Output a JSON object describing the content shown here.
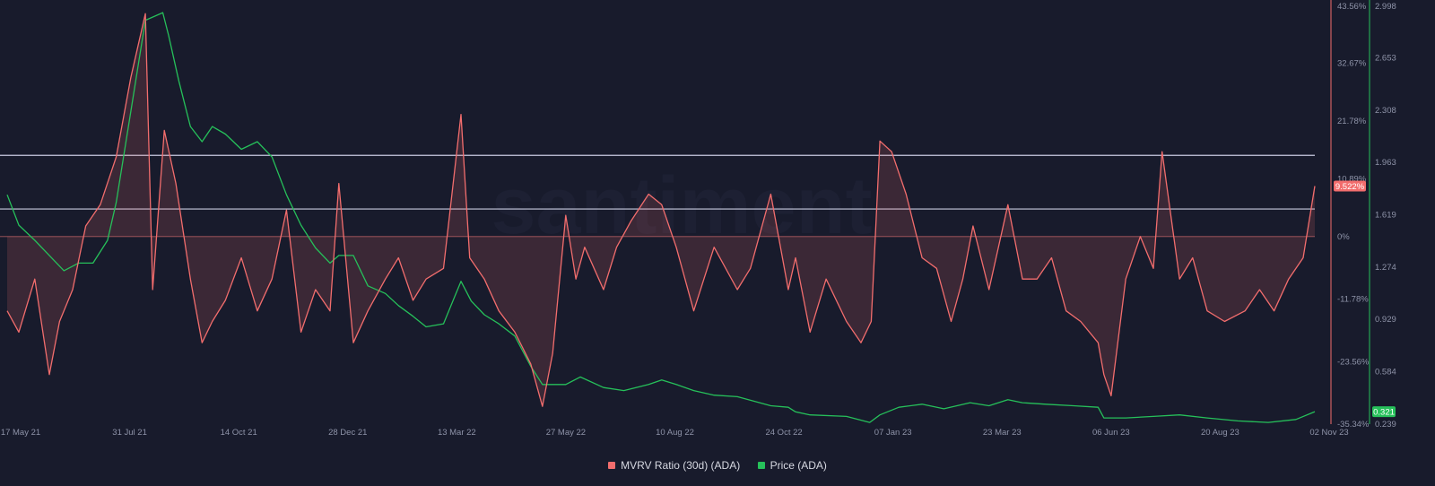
{
  "chart_data": {
    "type": "line",
    "watermark": "santiment",
    "x_ticks": [
      "17 May 21",
      "31 Jul 21",
      "14 Oct 21",
      "28 Dec 21",
      "13 Mar 22",
      "27 May 22",
      "10 Aug 22",
      "24 Oct 22",
      "07 Jan 23",
      "23 Mar 23",
      "06 Jun 23",
      "20 Aug 23",
      "02 Nov 23"
    ],
    "y_left": {
      "ticks": [
        "43.56%",
        "32.67%",
        "21.78%",
        "10.89%",
        "0%",
        "-11.78%",
        "-23.56%",
        "-35.34%"
      ],
      "tick_values": [
        43.56,
        32.67,
        21.78,
        10.89,
        0,
        -11.78,
        -23.56,
        -35.34
      ],
      "range": [
        -35.34,
        43.56
      ],
      "current_label": "9.522%",
      "current_value": 9.522
    },
    "y_right": {
      "ticks": [
        "2.998",
        "2.653",
        "2.308",
        "1.963",
        "1.619",
        "1.274",
        "0.929",
        "0.584",
        "0.239"
      ],
      "tick_values": [
        2.998,
        2.653,
        2.308,
        1.963,
        1.619,
        1.274,
        0.929,
        0.584,
        0.239
      ],
      "range": [
        0.239,
        2.998
      ],
      "current_label": "0.321",
      "current_value": 0.321
    },
    "reference_lines_mvrv": [
      15.3,
      5.2
    ],
    "series": [
      {
        "name": "MVRV Ratio (30d) (ADA)",
        "color": "#f26d6d",
        "axis": "left",
        "x": [
          "2021-05-17",
          "2021-05-25",
          "2021-06-05",
          "2021-06-15",
          "2021-06-22",
          "2021-07-01",
          "2021-07-10",
          "2021-07-20",
          "2021-07-31",
          "2021-08-10",
          "2021-08-20",
          "2021-08-25",
          "2021-09-02",
          "2021-09-10",
          "2021-09-20",
          "2021-09-28",
          "2021-10-05",
          "2021-10-14",
          "2021-10-25",
          "2021-11-05",
          "2021-11-15",
          "2021-11-25",
          "2021-12-05",
          "2021-12-15",
          "2021-12-25",
          "2021-12-31",
          "2022-01-10",
          "2022-01-20",
          "2022-02-01",
          "2022-02-10",
          "2022-02-20",
          "2022-03-01",
          "2022-03-13",
          "2022-03-25",
          "2022-03-31",
          "2022-04-10",
          "2022-04-20",
          "2022-05-01",
          "2022-05-12",
          "2022-05-20",
          "2022-05-27",
          "2022-06-05",
          "2022-06-12",
          "2022-06-18",
          "2022-07-01",
          "2022-07-10",
          "2022-07-20",
          "2022-08-01",
          "2022-08-10",
          "2022-08-20",
          "2022-09-01",
          "2022-09-15",
          "2022-10-01",
          "2022-10-10",
          "2022-10-24",
          "2022-11-05",
          "2022-11-10",
          "2022-11-20",
          "2022-12-01",
          "2022-12-15",
          "2022-12-25",
          "2023-01-01",
          "2023-01-07",
          "2023-01-15",
          "2023-01-25",
          "2023-02-05",
          "2023-02-15",
          "2023-02-25",
          "2023-03-05",
          "2023-03-12",
          "2023-03-23",
          "2023-04-05",
          "2023-04-15",
          "2023-04-25",
          "2023-05-05",
          "2023-05-15",
          "2023-05-25",
          "2023-06-06",
          "2023-06-10",
          "2023-06-15",
          "2023-06-25",
          "2023-07-05",
          "2023-07-14",
          "2023-07-20",
          "2023-08-01",
          "2023-08-10",
          "2023-08-20",
          "2023-09-01",
          "2023-09-15",
          "2023-09-25",
          "2023-10-05",
          "2023-10-15",
          "2023-10-25",
          "2023-11-02"
        ],
        "values": [
          -14,
          -18,
          -8,
          -26,
          -16,
          -10,
          2,
          6,
          15,
          30,
          42,
          -10,
          20,
          10,
          -8,
          -20,
          -16,
          -12,
          -4,
          -14,
          -8,
          5,
          -18,
          -10,
          -14,
          10,
          -20,
          -14,
          -8,
          -4,
          -12,
          -8,
          -6,
          23,
          -4,
          -8,
          -14,
          -18,
          -24,
          -32,
          -22,
          4,
          -8,
          -2,
          -10,
          -2,
          3,
          8,
          6,
          -2,
          -14,
          -2,
          -10,
          -6,
          8,
          -10,
          -4,
          -18,
          -8,
          -16,
          -20,
          -16,
          18,
          16,
          8,
          -4,
          -6,
          -16,
          -8,
          2,
          -10,
          6,
          -8,
          -8,
          -4,
          -14,
          -16,
          -20,
          -26,
          -30,
          -8,
          0,
          -6,
          16,
          -8,
          -4,
          -14,
          -16,
          -14,
          -10,
          -14,
          -8,
          -4,
          9.522
        ]
      },
      {
        "name": "Price (ADA)",
        "color": "#26c05a",
        "axis": "right",
        "x": [
          "2021-05-17",
          "2021-05-25",
          "2021-06-05",
          "2021-06-15",
          "2021-06-25",
          "2021-07-05",
          "2021-07-15",
          "2021-07-25",
          "2021-07-31",
          "2021-08-10",
          "2021-08-20",
          "2021-09-01",
          "2021-09-05",
          "2021-09-12",
          "2021-09-20",
          "2021-09-28",
          "2021-10-05",
          "2021-10-14",
          "2021-10-25",
          "2021-11-05",
          "2021-11-15",
          "2021-11-25",
          "2021-12-05",
          "2021-12-15",
          "2021-12-25",
          "2021-12-31",
          "2022-01-10",
          "2022-01-20",
          "2022-02-01",
          "2022-02-10",
          "2022-02-20",
          "2022-03-01",
          "2022-03-13",
          "2022-03-25",
          "2022-04-01",
          "2022-04-10",
          "2022-04-20",
          "2022-05-01",
          "2022-05-12",
          "2022-05-20",
          "2022-05-27",
          "2022-06-05",
          "2022-06-15",
          "2022-07-01",
          "2022-07-15",
          "2022-08-01",
          "2022-08-10",
          "2022-08-20",
          "2022-09-01",
          "2022-09-15",
          "2022-10-01",
          "2022-10-24",
          "2022-11-05",
          "2022-11-10",
          "2022-11-20",
          "2022-12-15",
          "2022-12-31",
          "2023-01-07",
          "2023-01-20",
          "2023-02-05",
          "2023-02-20",
          "2023-03-10",
          "2023-03-23",
          "2023-04-05",
          "2023-04-15",
          "2023-05-01",
          "2023-05-20",
          "2023-06-06",
          "2023-06-10",
          "2023-06-25",
          "2023-07-14",
          "2023-08-01",
          "2023-08-20",
          "2023-09-10",
          "2023-10-01",
          "2023-10-20",
          "2023-11-02"
        ],
        "values": [
          1.75,
          1.55,
          1.45,
          1.35,
          1.25,
          1.3,
          1.3,
          1.45,
          1.7,
          2.3,
          2.9,
          2.95,
          2.8,
          2.5,
          2.2,
          2.1,
          2.2,
          2.15,
          2.05,
          2.1,
          2.0,
          1.75,
          1.55,
          1.4,
          1.3,
          1.35,
          1.35,
          1.15,
          1.1,
          1.02,
          0.95,
          0.88,
          0.9,
          1.18,
          1.05,
          0.96,
          0.9,
          0.82,
          0.62,
          0.5,
          0.5,
          0.5,
          0.55,
          0.48,
          0.46,
          0.5,
          0.53,
          0.5,
          0.46,
          0.43,
          0.42,
          0.36,
          0.35,
          0.32,
          0.3,
          0.29,
          0.25,
          0.3,
          0.35,
          0.37,
          0.34,
          0.38,
          0.36,
          0.4,
          0.38,
          0.37,
          0.36,
          0.35,
          0.28,
          0.28,
          0.29,
          0.3,
          0.28,
          0.26,
          0.25,
          0.27,
          0.321
        ]
      }
    ]
  }
}
